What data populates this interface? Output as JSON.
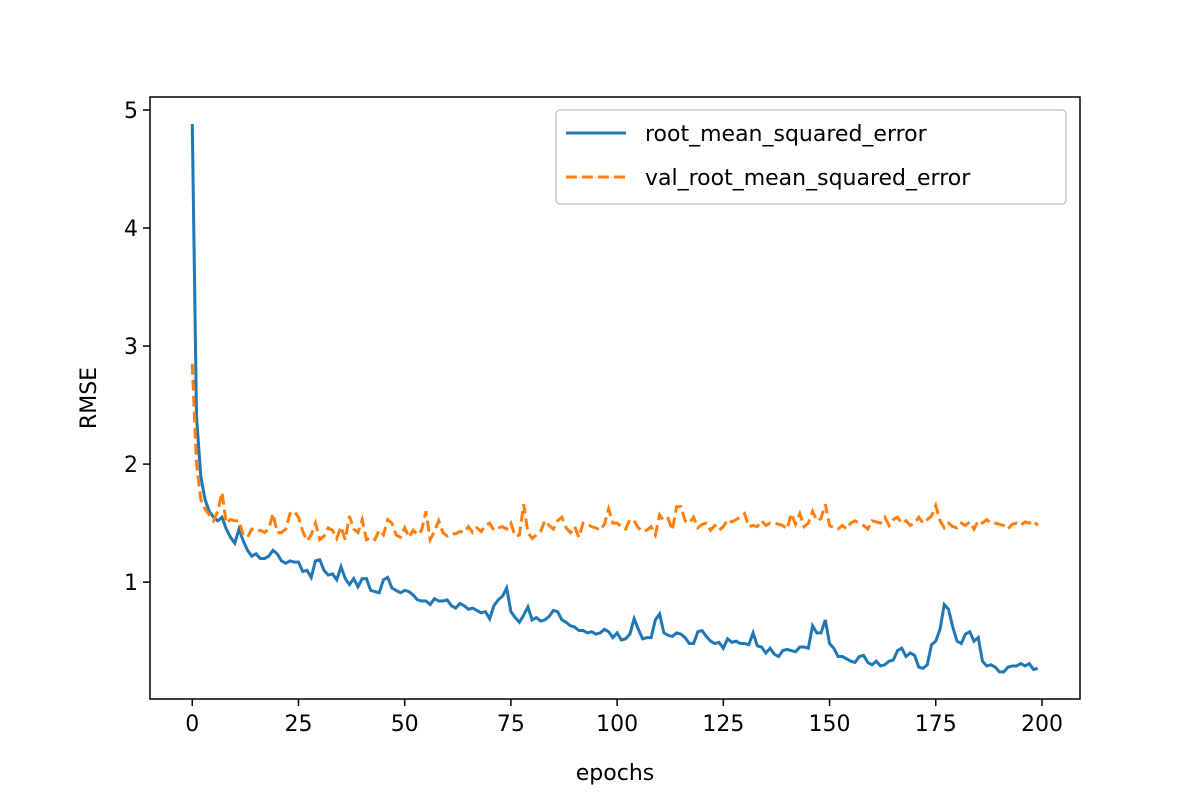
{
  "chart_data": {
    "type": "line",
    "xlabel": "epochs",
    "ylabel": "RMSE",
    "x": [
      0,
      1,
      2,
      3,
      4,
      5,
      6,
      7,
      8,
      9,
      10,
      11,
      12,
      13,
      14,
      15,
      16,
      17,
      18,
      19,
      20,
      21,
      22,
      23,
      24,
      25,
      26,
      27,
      28,
      29,
      30,
      31,
      32,
      33,
      34,
      35,
      36,
      37,
      38,
      39,
      40,
      41,
      42,
      43,
      44,
      45,
      46,
      47,
      48,
      49,
      50,
      51,
      52,
      53,
      54,
      55,
      56,
      57,
      58,
      59,
      60,
      61,
      62,
      63,
      64,
      65,
      66,
      67,
      68,
      69,
      70,
      71,
      72,
      73,
      74,
      75,
      76,
      77,
      78,
      79,
      80,
      81,
      82,
      83,
      84,
      85,
      86,
      87,
      88,
      89,
      90,
      91,
      92,
      93,
      94,
      95,
      96,
      97,
      98,
      99,
      100,
      101,
      102,
      103,
      104,
      105,
      106,
      107,
      108,
      109,
      110,
      111,
      112,
      113,
      114,
      115,
      116,
      117,
      118,
      119,
      120,
      121,
      122,
      123,
      124,
      125,
      126,
      127,
      128,
      129,
      130,
      131,
      132,
      133,
      134,
      135,
      136,
      137,
      138,
      139,
      140,
      141,
      142,
      143,
      144,
      145,
      146,
      147,
      148,
      149,
      150,
      151,
      152,
      153,
      154,
      155,
      156,
      157,
      158,
      159,
      160,
      161,
      162,
      163,
      164,
      165,
      166,
      167,
      168,
      169,
      170,
      171,
      172,
      173,
      174,
      175,
      176,
      177,
      178,
      179,
      180,
      181,
      182,
      183,
      184,
      185,
      186,
      187,
      188,
      189,
      190,
      191,
      192,
      193,
      194,
      195,
      196,
      197,
      198,
      199
    ],
    "series": [
      {
        "name": "root_mean_squared_error",
        "color": "#1f77b4",
        "linestyle": "solid",
        "values": [
          4.88,
          2.4,
          1.9,
          1.7,
          1.6,
          1.55,
          1.52,
          1.55,
          1.45,
          1.38,
          1.33,
          1.45,
          1.35,
          1.27,
          1.22,
          1.24,
          1.2,
          1.2,
          1.22,
          1.27,
          1.24,
          1.18,
          1.16,
          1.18,
          1.17,
          1.17,
          1.09,
          1.1,
          1.04,
          1.18,
          1.19,
          1.1,
          1.06,
          1.07,
          1.02,
          1.13,
          1.03,
          0.98,
          1.03,
          0.96,
          1.03,
          1.03,
          0.93,
          0.92,
          0.91,
          1.02,
          1.04,
          0.95,
          0.93,
          0.91,
          0.93,
          0.92,
          0.89,
          0.85,
          0.84,
          0.84,
          0.81,
          0.86,
          0.84,
          0.84,
          0.85,
          0.8,
          0.78,
          0.82,
          0.8,
          0.77,
          0.78,
          0.76,
          0.74,
          0.75,
          0.69,
          0.8,
          0.85,
          0.88,
          0.95,
          0.75,
          0.7,
          0.66,
          0.72,
          0.79,
          0.68,
          0.7,
          0.67,
          0.68,
          0.71,
          0.76,
          0.75,
          0.68,
          0.66,
          0.63,
          0.62,
          0.59,
          0.59,
          0.57,
          0.58,
          0.56,
          0.57,
          0.6,
          0.58,
          0.53,
          0.57,
          0.51,
          0.52,
          0.56,
          0.69,
          0.6,
          0.52,
          0.53,
          0.53,
          0.68,
          0.73,
          0.57,
          0.55,
          0.54,
          0.57,
          0.56,
          0.53,
          0.48,
          0.48,
          0.58,
          0.59,
          0.54,
          0.5,
          0.48,
          0.49,
          0.44,
          0.52,
          0.49,
          0.5,
          0.48,
          0.48,
          0.47,
          0.57,
          0.46,
          0.45,
          0.4,
          0.44,
          0.39,
          0.37,
          0.42,
          0.43,
          0.42,
          0.41,
          0.45,
          0.45,
          0.44,
          0.63,
          0.57,
          0.57,
          0.68,
          0.48,
          0.44,
          0.37,
          0.37,
          0.35,
          0.33,
          0.32,
          0.37,
          0.38,
          0.32,
          0.3,
          0.33,
          0.29,
          0.3,
          0.33,
          0.34,
          0.42,
          0.44,
          0.37,
          0.4,
          0.38,
          0.28,
          0.27,
          0.3,
          0.47,
          0.5,
          0.6,
          0.81,
          0.77,
          0.62,
          0.5,
          0.48,
          0.56,
          0.58,
          0.5,
          0.53,
          0.33,
          0.29,
          0.3,
          0.28,
          0.24,
          0.24,
          0.28,
          0.29,
          0.29,
          0.31,
          0.29,
          0.31,
          0.26,
          0.27
        ]
      },
      {
        "name": "val_root_mean_squared_error",
        "color": "#ff7f0e",
        "linestyle": "dashed",
        "values": [
          2.85,
          2.0,
          1.7,
          1.62,
          1.57,
          1.52,
          1.6,
          1.76,
          1.5,
          1.53,
          1.52,
          1.52,
          1.4,
          1.38,
          1.45,
          1.43,
          1.44,
          1.42,
          1.45,
          1.58,
          1.42,
          1.42,
          1.45,
          1.58,
          1.6,
          1.55,
          1.43,
          1.35,
          1.4,
          1.5,
          1.36,
          1.39,
          1.46,
          1.44,
          1.37,
          1.47,
          1.36,
          1.56,
          1.45,
          1.42,
          1.53,
          1.36,
          1.38,
          1.36,
          1.44,
          1.4,
          1.53,
          1.5,
          1.4,
          1.38,
          1.46,
          1.38,
          1.44,
          1.4,
          1.44,
          1.6,
          1.36,
          1.43,
          1.52,
          1.42,
          1.39,
          1.41,
          1.41,
          1.43,
          1.42,
          1.47,
          1.42,
          1.46,
          1.43,
          1.48,
          1.5,
          1.44,
          1.46,
          1.47,
          1.45,
          1.5,
          1.39,
          1.4,
          1.66,
          1.42,
          1.37,
          1.4,
          1.43,
          1.52,
          1.48,
          1.45,
          1.52,
          1.55,
          1.46,
          1.42,
          1.47,
          1.38,
          1.5,
          1.49,
          1.47,
          1.46,
          1.44,
          1.49,
          1.62,
          1.5,
          1.5,
          1.47,
          1.45,
          1.53,
          1.52,
          1.46,
          1.43,
          1.44,
          1.47,
          1.4,
          1.57,
          1.52,
          1.54,
          1.44,
          1.64,
          1.64,
          1.52,
          1.5,
          1.55,
          1.46,
          1.49,
          1.5,
          1.44,
          1.48,
          1.44,
          1.47,
          1.53,
          1.51,
          1.53,
          1.55,
          1.58,
          1.47,
          1.48,
          1.47,
          1.52,
          1.48,
          1.5,
          1.5,
          1.49,
          1.48,
          1.45,
          1.58,
          1.49,
          1.58,
          1.47,
          1.5,
          1.6,
          1.52,
          1.54,
          1.66,
          1.48,
          1.46,
          1.45,
          1.48,
          1.45,
          1.5,
          1.52,
          1.5,
          1.48,
          1.45,
          1.52,
          1.51,
          1.5,
          1.55,
          1.48,
          1.53,
          1.55,
          1.5,
          1.52,
          1.48,
          1.5,
          1.55,
          1.5,
          1.53,
          1.56,
          1.65,
          1.52,
          1.46,
          1.5,
          1.47,
          1.46,
          1.5,
          1.48,
          1.51,
          1.45,
          1.52,
          1.5,
          1.53,
          1.5,
          1.5,
          1.49,
          1.48,
          1.45,
          1.49,
          1.5,
          1.48,
          1.51,
          1.5,
          1.52,
          1.48
        ]
      }
    ],
    "xlim": [
      -9.95,
      208.95
    ],
    "ylim": [
      0.01,
      5.11
    ],
    "xticks": [
      0,
      25,
      50,
      75,
      100,
      125,
      150,
      175,
      200
    ],
    "yticks": [
      1,
      2,
      3,
      4,
      5
    ],
    "legend": "upper right",
    "grid": false
  }
}
